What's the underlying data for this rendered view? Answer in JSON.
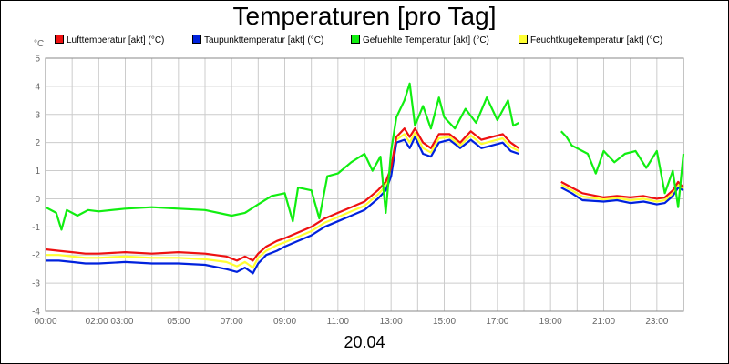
{
  "chart_data": {
    "type": "line",
    "title": "Temperaturen [pro Tag]",
    "xlabel": "20.04",
    "ylabel": "°C",
    "ylim": [
      -4,
      5
    ],
    "xlim": [
      0,
      24
    ],
    "grid": true,
    "legend_position": "top",
    "y_ticks": [
      -4,
      -3,
      -2,
      -1,
      0,
      1,
      2,
      3,
      4,
      5
    ],
    "x_ticks": [
      {
        "x": 0,
        "label": "00:00"
      },
      {
        "x": 2.4,
        "label": "02:00 03:00"
      },
      {
        "x": 5,
        "label": "05:00"
      },
      {
        "x": 7,
        "label": "07:00"
      },
      {
        "x": 9,
        "label": "09:00"
      },
      {
        "x": 11,
        "label": "11:00"
      },
      {
        "x": 13,
        "label": "13:00"
      },
      {
        "x": 15,
        "label": "15:00"
      },
      {
        "x": 17,
        "label": "17:00"
      },
      {
        "x": 19,
        "label": "19:00"
      },
      {
        "x": 21,
        "label": "21:00"
      },
      {
        "x": 23,
        "label": "23:00"
      }
    ],
    "series": [
      {
        "name": "Lufttemperatur [akt] (°C)",
        "color": "#ee1111",
        "segments": [
          [
            [
              0,
              -1.8
            ],
            [
              0.5,
              -1.85
            ],
            [
              1,
              -1.9
            ],
            [
              1.5,
              -1.95
            ],
            [
              2,
              -1.95
            ],
            [
              3,
              -1.9
            ],
            [
              4,
              -1.95
            ],
            [
              5,
              -1.9
            ],
            [
              6,
              -1.95
            ],
            [
              6.8,
              -2.05
            ],
            [
              7.2,
              -2.2
            ],
            [
              7.5,
              -2.05
            ],
            [
              7.8,
              -2.2
            ],
            [
              8,
              -1.95
            ],
            [
              8.3,
              -1.7
            ],
            [
              8.7,
              -1.5
            ],
            [
              9,
              -1.4
            ],
            [
              9.5,
              -1.2
            ],
            [
              10,
              -1.0
            ],
            [
              10.5,
              -0.7
            ],
            [
              11,
              -0.5
            ],
            [
              11.5,
              -0.3
            ],
            [
              12,
              -0.1
            ],
            [
              12.5,
              0.3
            ],
            [
              12.8,
              0.6
            ],
            [
              13,
              1.1
            ],
            [
              13.2,
              2.2
            ],
            [
              13.5,
              2.5
            ],
            [
              13.7,
              2.2
            ],
            [
              13.9,
              2.5
            ],
            [
              14.2,
              2.0
            ],
            [
              14.5,
              1.8
            ],
            [
              14.8,
              2.3
            ],
            [
              15.2,
              2.3
            ],
            [
              15.6,
              2.0
            ],
            [
              16,
              2.4
            ],
            [
              16.4,
              2.1
            ],
            [
              16.8,
              2.2
            ],
            [
              17.2,
              2.3
            ],
            [
              17.5,
              2.0
            ],
            [
              17.8,
              1.8
            ]
          ],
          [
            [
              19.4,
              0.6
            ],
            [
              19.8,
              0.4
            ],
            [
              20.2,
              0.2
            ],
            [
              21,
              0.05
            ],
            [
              21.5,
              0.1
            ],
            [
              22,
              0.05
            ],
            [
              22.5,
              0.1
            ],
            [
              23,
              0.0
            ],
            [
              23.3,
              0.05
            ],
            [
              23.6,
              0.3
            ],
            [
              23.8,
              0.6
            ],
            [
              24,
              0.4
            ]
          ]
        ]
      },
      {
        "name": "Taupunkttemperatur [akt] (°C)",
        "color": "#0022dd",
        "segments": [
          [
            [
              0,
              -2.2
            ],
            [
              0.5,
              -2.2
            ],
            [
              1,
              -2.25
            ],
            [
              1.5,
              -2.3
            ],
            [
              2,
              -2.3
            ],
            [
              3,
              -2.25
            ],
            [
              4,
              -2.3
            ],
            [
              5,
              -2.3
            ],
            [
              6,
              -2.35
            ],
            [
              6.8,
              -2.5
            ],
            [
              7.2,
              -2.6
            ],
            [
              7.5,
              -2.45
            ],
            [
              7.8,
              -2.65
            ],
            [
              8,
              -2.3
            ],
            [
              8.3,
              -2.0
            ],
            [
              8.7,
              -1.85
            ],
            [
              9,
              -1.7
            ],
            [
              9.5,
              -1.5
            ],
            [
              10,
              -1.3
            ],
            [
              10.5,
              -1.0
            ],
            [
              11,
              -0.8
            ],
            [
              11.5,
              -0.6
            ],
            [
              12,
              -0.4
            ],
            [
              12.5,
              0.0
            ],
            [
              12.8,
              0.3
            ],
            [
              13,
              0.8
            ],
            [
              13.2,
              2.0
            ],
            [
              13.5,
              2.1
            ],
            [
              13.7,
              1.8
            ],
            [
              13.9,
              2.2
            ],
            [
              14.2,
              1.6
            ],
            [
              14.5,
              1.5
            ],
            [
              14.8,
              2.0
            ],
            [
              15.2,
              2.1
            ],
            [
              15.6,
              1.8
            ],
            [
              16,
              2.1
            ],
            [
              16.4,
              1.8
            ],
            [
              16.8,
              1.9
            ],
            [
              17.2,
              2.0
            ],
            [
              17.5,
              1.7
            ],
            [
              17.8,
              1.6
            ]
          ],
          [
            [
              19.4,
              0.4
            ],
            [
              19.8,
              0.2
            ],
            [
              20.2,
              -0.05
            ],
            [
              21,
              -0.1
            ],
            [
              21.5,
              -0.05
            ],
            [
              22,
              -0.15
            ],
            [
              22.5,
              -0.1
            ],
            [
              23,
              -0.2
            ],
            [
              23.3,
              -0.15
            ],
            [
              23.6,
              0.1
            ],
            [
              23.8,
              0.4
            ],
            [
              24,
              0.3
            ]
          ]
        ]
      },
      {
        "name": "Gefuehlte Temperatur [akt] (°C)",
        "color": "#11ee11",
        "segments": [
          [
            [
              0,
              -0.3
            ],
            [
              0.4,
              -0.5
            ],
            [
              0.6,
              -1.1
            ],
            [
              0.8,
              -0.4
            ],
            [
              1.2,
              -0.6
            ],
            [
              1.6,
              -0.4
            ],
            [
              2,
              -0.45
            ],
            [
              3,
              -0.35
            ],
            [
              4,
              -0.3
            ],
            [
              5,
              -0.35
            ],
            [
              6,
              -0.4
            ],
            [
              7,
              -0.6
            ],
            [
              7.5,
              -0.5
            ],
            [
              8,
              -0.2
            ],
            [
              8.5,
              0.1
            ],
            [
              9,
              0.2
            ],
            [
              9.3,
              -0.8
            ],
            [
              9.5,
              0.4
            ],
            [
              10,
              0.3
            ],
            [
              10.3,
              -0.7
            ],
            [
              10.6,
              0.8
            ],
            [
              11,
              0.9
            ],
            [
              11.5,
              1.3
            ],
            [
              12,
              1.6
            ],
            [
              12.3,
              1.0
            ],
            [
              12.6,
              1.5
            ],
            [
              12.8,
              -0.5
            ],
            [
              13,
              1.7
            ],
            [
              13.2,
              2.9
            ],
            [
              13.5,
              3.5
            ],
            [
              13.7,
              4.1
            ],
            [
              13.9,
              2.6
            ],
            [
              14.2,
              3.3
            ],
            [
              14.5,
              2.5
            ],
            [
              14.8,
              3.6
            ],
            [
              15,
              2.9
            ],
            [
              15.4,
              2.5
            ],
            [
              15.8,
              3.2
            ],
            [
              16.2,
              2.7
            ],
            [
              16.6,
              3.6
            ],
            [
              17,
              2.8
            ],
            [
              17.4,
              3.5
            ],
            [
              17.6,
              2.6
            ],
            [
              17.8,
              2.7
            ]
          ],
          [
            [
              19.4,
              2.4
            ],
            [
              19.6,
              2.2
            ],
            [
              19.8,
              1.9
            ],
            [
              20.4,
              1.6
            ],
            [
              20.7,
              0.9
            ],
            [
              21,
              1.7
            ],
            [
              21.4,
              1.3
            ],
            [
              21.8,
              1.6
            ],
            [
              22.2,
              1.7
            ],
            [
              22.6,
              1.1
            ],
            [
              23,
              1.7
            ],
            [
              23.3,
              0.2
            ],
            [
              23.6,
              1.0
            ],
            [
              23.8,
              -0.3
            ],
            [
              24,
              1.6
            ]
          ]
        ]
      },
      {
        "name": "Feuchtkugeltemperatur [akt] (°C)",
        "color": "#ffff33",
        "segments": [
          [
            [
              0,
              -2.0
            ],
            [
              0.5,
              -2.0
            ],
            [
              1,
              -2.05
            ],
            [
              1.5,
              -2.1
            ],
            [
              2,
              -2.1
            ],
            [
              3,
              -2.05
            ],
            [
              4,
              -2.1
            ],
            [
              5,
              -2.1
            ],
            [
              6,
              -2.15
            ],
            [
              6.8,
              -2.25
            ],
            [
              7.2,
              -2.4
            ],
            [
              7.5,
              -2.25
            ],
            [
              7.8,
              -2.45
            ],
            [
              8,
              -2.1
            ],
            [
              8.3,
              -1.85
            ],
            [
              8.7,
              -1.65
            ],
            [
              9,
              -1.55
            ],
            [
              9.5,
              -1.35
            ],
            [
              10,
              -1.15
            ],
            [
              10.5,
              -0.85
            ],
            [
              11,
              -0.65
            ],
            [
              11.5,
              -0.45
            ],
            [
              12,
              -0.25
            ],
            [
              12.5,
              0.15
            ],
            [
              12.8,
              0.45
            ],
            [
              13,
              0.95
            ],
            [
              13.2,
              2.1
            ],
            [
              13.5,
              2.3
            ],
            [
              13.7,
              2.0
            ],
            [
              13.9,
              2.35
            ],
            [
              14.2,
              1.8
            ],
            [
              14.5,
              1.65
            ],
            [
              14.8,
              2.15
            ],
            [
              15.2,
              2.2
            ],
            [
              15.6,
              1.9
            ],
            [
              16,
              2.25
            ],
            [
              16.4,
              1.95
            ],
            [
              16.8,
              2.05
            ],
            [
              17.2,
              2.15
            ],
            [
              17.5,
              1.85
            ],
            [
              17.8,
              1.7
            ]
          ],
          [
            [
              19.4,
              0.5
            ],
            [
              19.8,
              0.3
            ],
            [
              20.2,
              0.08
            ],
            [
              21,
              -0.02
            ],
            [
              21.5,
              0.03
            ],
            [
              22,
              -0.05
            ],
            [
              22.5,
              0.0
            ],
            [
              23,
              -0.1
            ],
            [
              23.3,
              -0.05
            ],
            [
              23.6,
              0.2
            ],
            [
              23.8,
              0.5
            ],
            [
              24,
              0.35
            ]
          ]
        ]
      }
    ]
  }
}
